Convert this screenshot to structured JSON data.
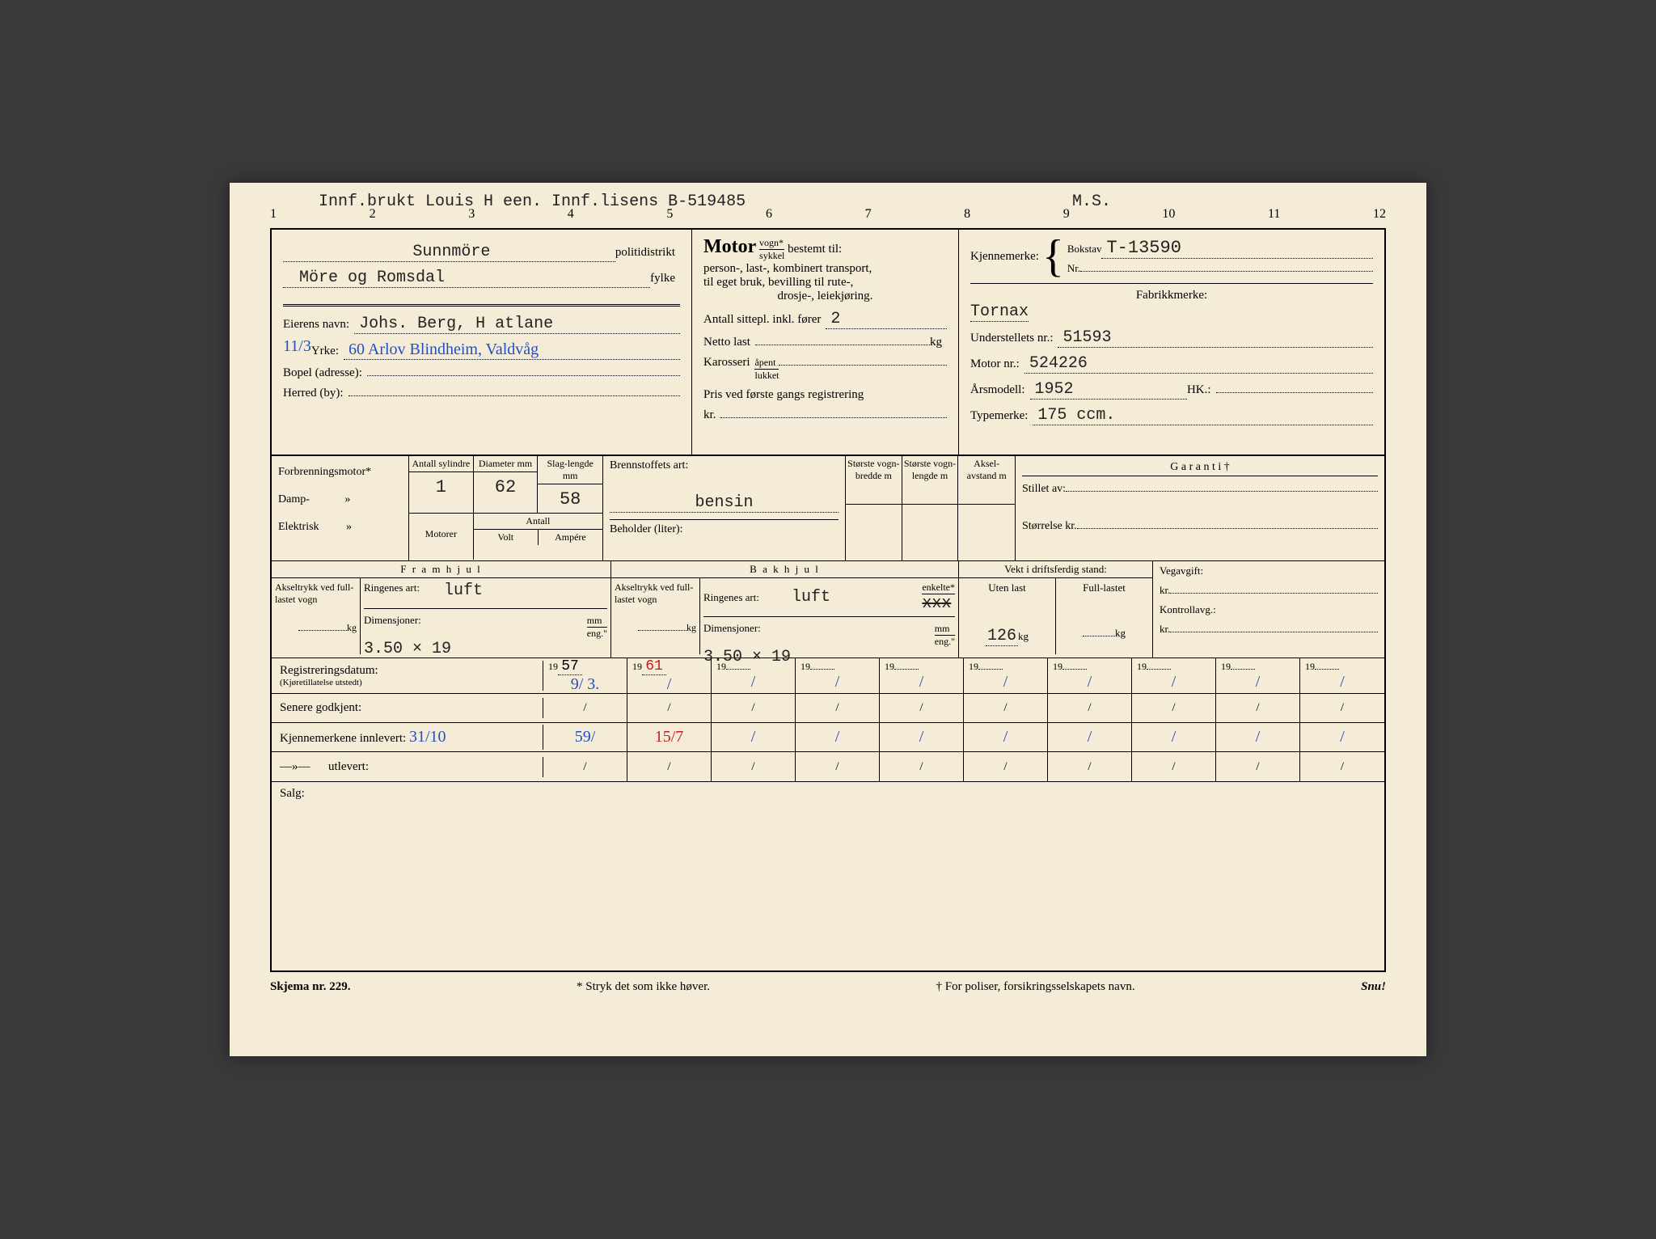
{
  "ruler": {
    "header": "Innf.brukt Louis H een. Innf.lisens B-519485",
    "ms": "M.S.",
    "ticks": [
      "1",
      "2",
      "3",
      "4",
      "5",
      "6",
      "7",
      "8",
      "9",
      "10",
      "11",
      "12"
    ]
  },
  "district": {
    "politidistrikt_label": "politidistrikt",
    "politidistrikt": "Sunnmöre",
    "fylke_label": "fylke",
    "fylke": "Möre og Romsdal"
  },
  "owner": {
    "eierens_navn_label": "Eierens navn:",
    "eierens_navn": "Johs. Berg, H atlane",
    "yrke_label": "Yrke:",
    "yrke_prefix": "11/3",
    "yrke": "60 Arlov Blindheim, Valdvåg",
    "bopel_label": "Bopel (adresse):",
    "bopel": "",
    "herred_label": "Herred (by):",
    "herred": ""
  },
  "motor_block": {
    "title": "Motor",
    "frac_top": "vogn*",
    "frac_bot": "sykkel",
    "bestemt": "bestemt til:",
    "line1": "person-, last-, kombinert transport,",
    "line2": "til eget bruk, bevilling til rute-,",
    "line3": "drosje-, leiekjøring.",
    "sittepl_label": "Antall sittepl. inkl. fører",
    "sittepl": "2",
    "netto_label": "Netto last",
    "netto_unit": "kg",
    "karosseri_label": "Karosseri",
    "karosseri_top": "åpent",
    "karosseri_bot": "lukket",
    "pris_label": "Pris ved første gangs registrering",
    "kr_label": "kr."
  },
  "kjennemerke": {
    "label": "Kjennemerke:",
    "bokstav_label": "Bokstav",
    "bokstav": "T-13590",
    "nr_label": "Nr.",
    "nr": "",
    "fabrikkmerke_label": "Fabrikkmerke:",
    "fabrikkmerke": "Tornax",
    "understell_label": "Understellets nr.:",
    "understell": "51593",
    "motornr_label": "Motor nr.:",
    "motornr": "524226",
    "aarsmodell_label": "Årsmodell:",
    "aarsmodell": "1952",
    "hk_label": "HK.:",
    "hk": "",
    "typemerke_label": "Typemerke:",
    "typemerke": "175 ccm."
  },
  "engine": {
    "forbrenning": "Forbrenningsmotor*",
    "damp": "Damp-",
    "elektrisk": "Elektrisk",
    "quote": "»",
    "antall_syl": "Antall sylindre",
    "diameter": "Diameter mm",
    "slag": "Slag-lengde mm",
    "syl_val": "1",
    "dia_val": "62",
    "slag_val": "58",
    "motorer": "Motorer",
    "antall": "Antall",
    "volt": "Volt",
    "ampere": "Ampére",
    "brennstoff_label": "Brennstoffets art:",
    "brennstoff": "bensin",
    "beholder": "Beholder (liter):",
    "storste_bredde": "Største vogn-bredde m",
    "storste_lengde": "Største vogn-lengde m",
    "aksel": "Aksel-avstand m",
    "garanti": "G a r a n t i †",
    "stillet": "Stillet av:",
    "storrelse": "Størrelse kr."
  },
  "wheels": {
    "framhjul": "F r a m h j u l",
    "bakhjul": "B a k h j u l",
    "akseltrykk": "Akseltrykk ved full-lastet vogn",
    "kg": "kg",
    "ringenes": "Ringenes art:",
    "ring_front": "luft",
    "ring_rear": "luft",
    "enkelte": "enkelte*",
    "tvilling": "tvilling",
    "xxx": "xxx",
    "dimensjoner": "Dimensjoner:",
    "dim_front": "3.50 × 19",
    "dim_rear": "3.50 × 19",
    "mm": "mm",
    "eng": "eng.\"",
    "vekt_label": "Vekt i driftsferdig stand:",
    "uten": "Uten last",
    "full": "Full-lastet",
    "uten_val": "126",
    "vegavgift": "Vegavgift:",
    "kontroll": "Kontrollavg.:",
    "kr": "kr."
  },
  "dates": {
    "reg_label": "Registreringsdatum:",
    "reg_sub": "(Kjøretillatelse utstedt)",
    "senere": "Senere godkjent:",
    "innlevert": "Kjennemerkene innlevert:",
    "utlevert_q": "—»—",
    "utlevert": "utlevert:",
    "y_prefix": "19",
    "cols": [
      {
        "year": "57",
        "reg": "9/ 3.",
        "sen": "/",
        "inn": "59/",
        "ut": "/",
        "inn_date": "31/10"
      },
      {
        "year": "61",
        "reg": "/",
        "sen": "/",
        "inn": "15/7",
        "ut": "/",
        "red": true,
        "year_red": true
      },
      {
        "year": "",
        "reg": "/",
        "sen": "/",
        "inn": "/",
        "ut": "/"
      },
      {
        "year": "",
        "reg": "/",
        "sen": "/",
        "inn": "/",
        "ut": "/"
      },
      {
        "year": "",
        "reg": "/",
        "sen": "/",
        "inn": "/",
        "ut": "/"
      },
      {
        "year": "",
        "reg": "/",
        "sen": "/",
        "inn": "/",
        "ut": "/"
      },
      {
        "year": "",
        "reg": "/",
        "sen": "/",
        "inn": "/",
        "ut": "/"
      },
      {
        "year": "",
        "reg": "/",
        "sen": "/",
        "inn": "/",
        "ut": "/"
      },
      {
        "year": "",
        "reg": "/",
        "sen": "/",
        "inn": "/",
        "ut": "/"
      },
      {
        "year": "",
        "reg": "/",
        "sen": "/",
        "inn": "/",
        "ut": "/"
      }
    ]
  },
  "salg_label": "Salg:",
  "footer": {
    "skjema": "Skjema nr. 229.",
    "stryk": "* Stryk det som ikke høver.",
    "poliser": "† For poliser, forsikringsselskapets navn.",
    "snu": "Snu!"
  }
}
